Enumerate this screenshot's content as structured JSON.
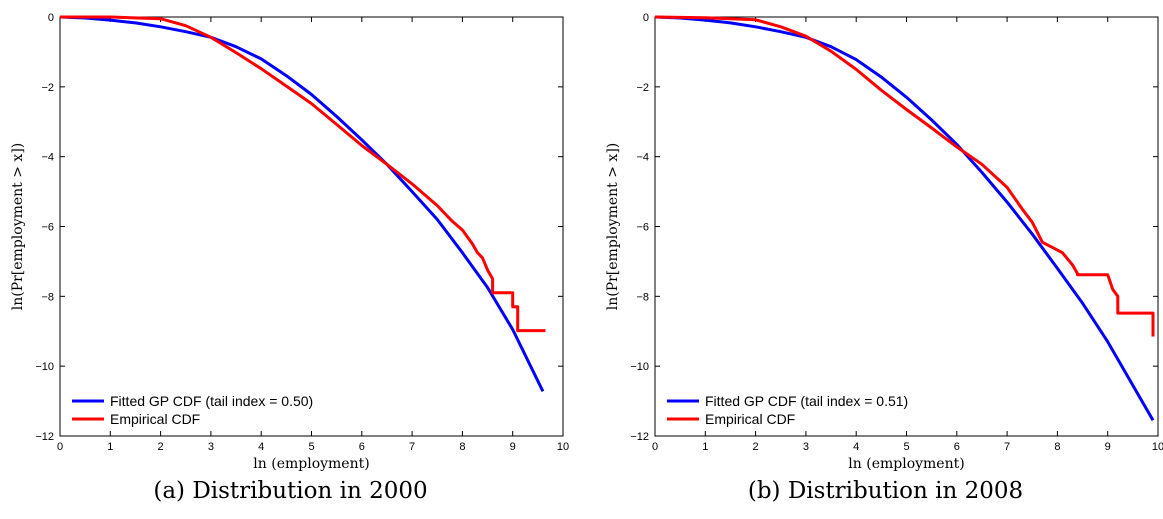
{
  "chart_data": [
    {
      "type": "line",
      "caption": "(a) Distribution in 2000",
      "xlabel": "ln (employment)",
      "ylabel": "ln(Pr[employment > x])",
      "xlim": [
        0,
        10
      ],
      "ylim": [
        -12,
        0
      ],
      "xticks": [
        "0",
        "1",
        "2",
        "3",
        "4",
        "5",
        "6",
        "7",
        "8",
        "9",
        "10"
      ],
      "yticks": [
        "0",
        "−2",
        "−4",
        "−6",
        "−8",
        "−10",
        "−12"
      ],
      "legend_position": "bottom-left",
      "series": [
        {
          "name": "Fitted GP CDF (tail index = 0.50)",
          "color": "#0000ff",
          "x": [
            0,
            0.5,
            1,
            1.5,
            2,
            2.5,
            3,
            3.5,
            4,
            4.5,
            5,
            5.5,
            6,
            6.5,
            7,
            7.5,
            8,
            8.5,
            9,
            9.6
          ],
          "y": [
            0,
            -0.03,
            -0.09,
            -0.17,
            -0.28,
            -0.42,
            -0.58,
            -0.85,
            -1.2,
            -1.68,
            -2.22,
            -2.85,
            -3.52,
            -4.22,
            -5.0,
            -5.8,
            -6.75,
            -7.75,
            -8.95,
            -10.72
          ]
        },
        {
          "name": "Empirical CDF",
          "color": "#ff0000",
          "x": [
            0,
            1,
            2,
            2.5,
            3,
            3.5,
            4,
            4.5,
            5,
            5.5,
            6,
            6.5,
            7,
            7.5,
            7.8,
            8.0,
            8.2,
            8.3,
            8.4,
            8.5,
            8.6,
            8.6,
            9.0,
            9.0,
            9.1,
            9.1,
            9.65
          ],
          "y": [
            0,
            0,
            -0.05,
            -0.25,
            -0.58,
            -1.02,
            -1.48,
            -1.98,
            -2.48,
            -3.08,
            -3.68,
            -4.22,
            -4.78,
            -5.4,
            -5.85,
            -6.1,
            -6.5,
            -6.75,
            -6.9,
            -7.25,
            -7.5,
            -7.9,
            -7.9,
            -8.3,
            -8.3,
            -8.98,
            -8.98
          ]
        }
      ]
    },
    {
      "type": "line",
      "caption": "(b) Distribution in 2008",
      "xlabel": "ln (employment)",
      "ylabel": "ln(Pr[employment > x])",
      "xlim": [
        0,
        10
      ],
      "ylim": [
        -12,
        0
      ],
      "xticks": [
        "0",
        "1",
        "2",
        "3",
        "4",
        "5",
        "6",
        "7",
        "8",
        "9",
        "10"
      ],
      "yticks": [
        "0",
        "−2",
        "−4",
        "−6",
        "−8",
        "−10",
        "−12"
      ],
      "legend_position": "bottom-left",
      "series": [
        {
          "name": "Fitted GP CDF (tail index = 0.51)",
          "color": "#0000ff",
          "x": [
            0,
            0.5,
            1,
            1.5,
            2,
            2.5,
            3,
            3.5,
            4,
            4.5,
            5,
            5.5,
            6,
            6.5,
            7,
            7.5,
            8,
            8.5,
            9,
            9.9
          ],
          "y": [
            0,
            -0.03,
            -0.09,
            -0.17,
            -0.28,
            -0.42,
            -0.58,
            -0.85,
            -1.22,
            -1.72,
            -2.3,
            -2.95,
            -3.65,
            -4.45,
            -5.3,
            -6.22,
            -7.2,
            -8.2,
            -9.3,
            -11.55
          ]
        },
        {
          "name": "Empirical CDF",
          "color": "#ff0000",
          "x": [
            0,
            1,
            2,
            2.5,
            3,
            3.5,
            4,
            4.5,
            5,
            5.5,
            6,
            6.5,
            7,
            7.3,
            7.5,
            7.7,
            7.9,
            8.1,
            8.3,
            8.4,
            8.4,
            9.0,
            9.1,
            9.2,
            9.2,
            9.9,
            9.9
          ],
          "y": [
            0,
            -0.02,
            -0.08,
            -0.28,
            -0.55,
            -0.98,
            -1.5,
            -2.1,
            -2.65,
            -3.18,
            -3.72,
            -4.22,
            -4.88,
            -5.5,
            -5.88,
            -6.45,
            -6.6,
            -6.75,
            -7.1,
            -7.35,
            -7.38,
            -7.38,
            -7.8,
            -8.0,
            -8.48,
            -8.48,
            -9.15
          ]
        }
      ]
    }
  ]
}
